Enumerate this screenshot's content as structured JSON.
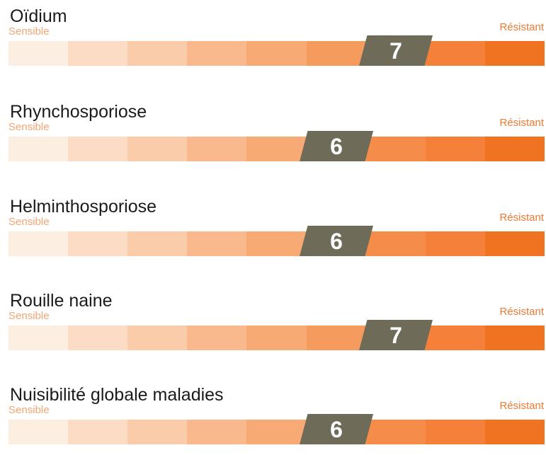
{
  "scale": {
    "min_label": "Sensible",
    "max_label": "Résistant",
    "steps": 9,
    "colors": [
      "#fdeee2",
      "#fcdcc5",
      "#fbcca9",
      "#f9b98c",
      "#f8aa74",
      "#f69b5e",
      "#f58c4a",
      "#f5803a",
      "#f07322"
    ],
    "score_badge_color": "#6e6c58"
  },
  "ratings": [
    {
      "title": "Oïdium",
      "score": "7"
    },
    {
      "title": "Rhynchosporiose",
      "score": "6"
    },
    {
      "title": "Helminthosporiose",
      "score": "6"
    },
    {
      "title": "Rouille naine",
      "score": "7"
    },
    {
      "title": "Nuisibilité globale maladies",
      "score": "6"
    }
  ]
}
